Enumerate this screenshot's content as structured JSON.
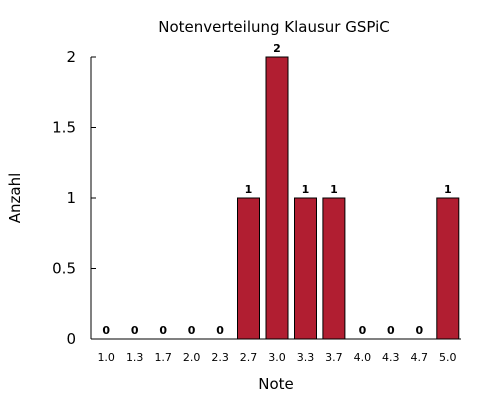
{
  "chart_data": {
    "type": "bar",
    "title": "Notenverteilung Klausur GSPiC",
    "xlabel": "Note",
    "ylabel": "Anzahl",
    "categories": [
      "1.0",
      "1.3",
      "1.7",
      "2.0",
      "2.3",
      "2.7",
      "3.0",
      "3.3",
      "3.7",
      "4.0",
      "4.3",
      "4.7",
      "5.0"
    ],
    "values": [
      0,
      0,
      0,
      0,
      0,
      1,
      2,
      1,
      1,
      0,
      0,
      0,
      1
    ],
    "data_labels": [
      "0",
      "0",
      "0",
      "0",
      "0",
      "1",
      "2",
      "1",
      "1",
      "0",
      "0",
      "0",
      "1"
    ],
    "ylim": [
      0,
      2
    ],
    "yticks": [
      "0",
      "0.5",
      "1",
      "1.5",
      "2"
    ],
    "ytick_values": [
      0,
      0.5,
      1,
      1.5,
      2
    ],
    "grid": false,
    "legend": "none",
    "bar_color": "#b11e31",
    "bar_edge_color": "#000000"
  }
}
